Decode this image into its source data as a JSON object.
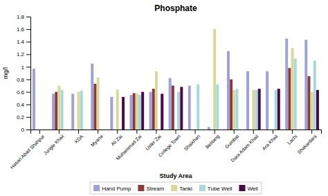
{
  "chart_data": {
    "type": "bar",
    "title": "Phosphate",
    "x_label": "Study Area",
    "y_label": "mg/l",
    "categories": [
      "Hasan Abad Shahpur",
      "Jungle Khail",
      "KDA",
      "Myana",
      "Ali Zai",
      "Muhammad Zai",
      "Uster Zai",
      "College Town",
      "Shaikhan",
      "Belitang",
      "Gumbat",
      "Dara Adam Khail",
      "Ara Khail",
      "Lachi",
      "Shakardara"
    ],
    "series": [
      {
        "name": "Hand Pump",
        "color": "#a0a0d8",
        "values": [
          0.97,
          0.57,
          0.57,
          1.05,
          0.52,
          0.55,
          0.6,
          0.82,
          0.7,
          0.04,
          1.25,
          0.93,
          0.93,
          1.45,
          1.43
        ]
      },
      {
        "name": "Stream",
        "color": "#8b3a3a",
        "values": [
          0.0,
          0.6,
          0.0,
          0.73,
          0.0,
          0.58,
          0.65,
          0.7,
          0.0,
          0.0,
          0.8,
          0.0,
          0.0,
          0.98,
          0.85
        ]
      },
      {
        "name": "Tanki",
        "color": "#d8d89a",
        "values": [
          0.0,
          0.7,
          0.6,
          0.83,
          0.64,
          0.57,
          0.93,
          0.0,
          0.0,
          1.6,
          0.63,
          0.63,
          0.0,
          1.3,
          0.6
        ]
      },
      {
        "name": "Tube Well",
        "color": "#a8d8d8",
        "values": [
          0.0,
          0.63,
          0.62,
          0.0,
          0.0,
          0.55,
          0.0,
          0.6,
          0.72,
          0.72,
          0.65,
          0.63,
          0.63,
          1.13,
          1.1
        ]
      },
      {
        "name": "Well",
        "color": "#4a0a4a",
        "values": [
          0.0,
          0.0,
          0.0,
          0.0,
          0.52,
          0.6,
          0.57,
          0.68,
          0.0,
          0.0,
          0.0,
          0.65,
          0.65,
          0.0,
          0.63
        ]
      }
    ],
    "ylim": [
      0,
      1.8
    ],
    "yticks": [
      0,
      0.2,
      0.4,
      0.6,
      0.8,
      1,
      1.2,
      1.4,
      1.6,
      1.8
    ],
    "grid": false,
    "legend": "bottom"
  }
}
